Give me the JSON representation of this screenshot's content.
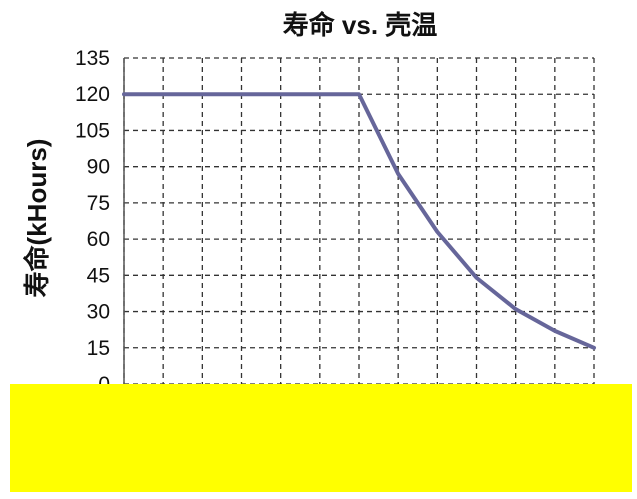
{
  "chart_data": {
    "type": "line",
    "title": "寿命 vs. 壳温",
    "ylabel": "寿命(kHours)",
    "xlabel": "",
    "ylim": [
      0,
      135
    ],
    "yticks": [
      0,
      15,
      30,
      45,
      60,
      75,
      90,
      105,
      120,
      135
    ],
    "grid": true,
    "grid_style": "dashed",
    "series": [
      {
        "color": "#66669a",
        "x": [
          0,
          1,
          2,
          3,
          4,
          5,
          6,
          7,
          8,
          9,
          10,
          11,
          12
        ],
        "y": [
          120,
          120,
          120,
          120,
          120,
          120,
          120,
          87,
          63,
          44,
          31,
          22,
          15
        ]
      }
    ],
    "colors": {
      "line": "#66669a",
      "grid": "#333333",
      "overlay": "#ffff00"
    }
  }
}
